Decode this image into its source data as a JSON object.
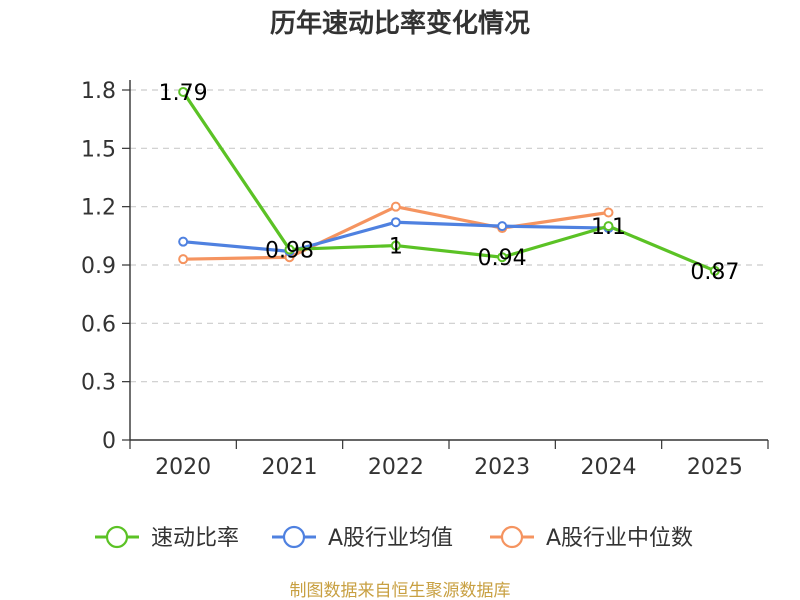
{
  "chart_data": {
    "type": "line",
    "title": "历年速动比率变化情况",
    "categories": [
      "2020",
      "2021",
      "2022",
      "2023",
      "2024",
      "2025"
    ],
    "y_ticks": [
      "0",
      "0.3",
      "0.6",
      "0.9",
      "1.2",
      "1.5",
      "1.8"
    ],
    "ylim": [
      0,
      1.8
    ],
    "grid": true,
    "legend_position": "bottom",
    "series": [
      {
        "name": "速动比率",
        "color": "#5bc225",
        "values": [
          1.79,
          0.98,
          1.0,
          0.94,
          1.1,
          0.87
        ],
        "labels": [
          "1.79",
          "0.98",
          "1",
          "0.94",
          "1.1",
          "0.87"
        ]
      },
      {
        "name": "A股行业均值",
        "color": "#4f81e0",
        "values": [
          1.02,
          0.97,
          1.12,
          1.1,
          1.09,
          null
        ]
      },
      {
        "name": "A股行业中位数",
        "color": "#f59460",
        "values": [
          0.93,
          0.94,
          1.2,
          1.09,
          1.17,
          null
        ]
      }
    ]
  },
  "source_text": "制图数据来自恒生聚源数据库"
}
